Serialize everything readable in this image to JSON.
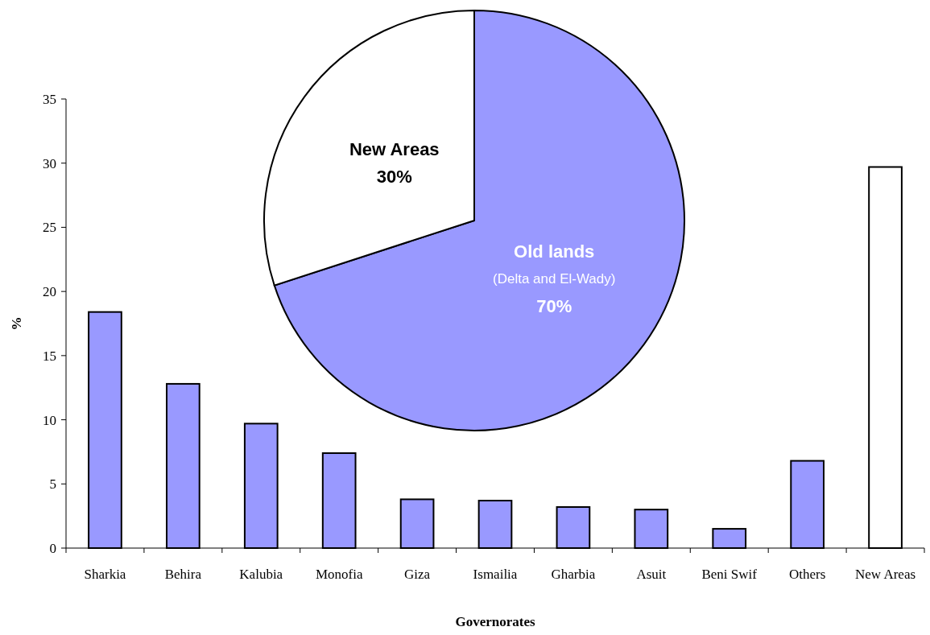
{
  "chart_data": [
    {
      "type": "bar",
      "xlabel": "Governorates",
      "ylabel": "%",
      "categories": [
        "Sharkia",
        "Behira",
        "Kalubia",
        "Monofia",
        "Giza",
        "Ismailia",
        "Gharbia",
        "Asuit",
        "Beni Swif",
        "Others",
        "New Areas"
      ],
      "values": [
        18.4,
        12.8,
        9.7,
        7.4,
        3.8,
        3.7,
        3.2,
        3.0,
        1.5,
        6.8,
        29.7
      ],
      "colors": [
        "#9999ff",
        "#9999ff",
        "#9999ff",
        "#9999ff",
        "#9999ff",
        "#9999ff",
        "#9999ff",
        "#9999ff",
        "#9999ff",
        "#9999ff",
        "#ffffff"
      ],
      "ylim": [
        0,
        35
      ],
      "yticks": [
        0,
        5,
        10,
        15,
        20,
        25,
        30,
        35
      ],
      "grid": false
    },
    {
      "type": "pie",
      "categories": [
        "Old lands",
        "New Areas"
      ],
      "values": [
        70,
        30
      ],
      "colors": [
        "#9999ff",
        "#ffffff"
      ],
      "value_labels": [
        "70%",
        "30%"
      ],
      "annotations": [
        "(Delta and El-Wady)"
      ]
    }
  ]
}
